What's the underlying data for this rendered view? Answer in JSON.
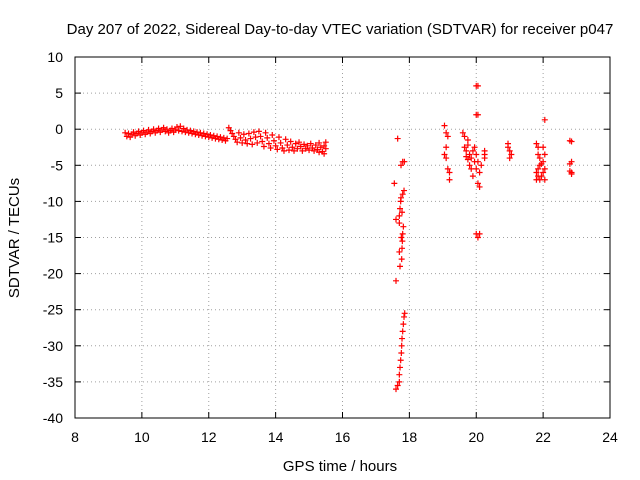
{
  "chart_data": {
    "type": "scatter",
    "title": "Day 207 of 2022, Sidereal Day-to-day VTEC variation (SDTVAR) for receiver p047",
    "xlabel": "GPS time / hours",
    "ylabel": "SDTVAR / TECUs",
    "xlim": [
      8,
      24
    ],
    "ylim": [
      -40,
      10
    ],
    "xticks": [
      8,
      10,
      12,
      14,
      16,
      18,
      20,
      22,
      24
    ],
    "yticks": [
      10,
      5,
      0,
      -5,
      -10,
      -15,
      -20,
      -25,
      -30,
      -35,
      -40
    ],
    "grid": true,
    "marker": "+",
    "color": "#ff0000",
    "series": [
      {
        "name": "SDTVAR",
        "points": [
          [
            9.5,
            -0.5
          ],
          [
            9.55,
            -1.0
          ],
          [
            9.6,
            -0.6
          ],
          [
            9.65,
            -1.1
          ],
          [
            9.7,
            -0.7
          ],
          [
            9.75,
            -0.4
          ],
          [
            9.8,
            -0.9
          ],
          [
            9.85,
            -0.6
          ],
          [
            9.9,
            -0.3
          ],
          [
            9.95,
            -0.8
          ],
          [
            10.0,
            -0.5
          ],
          [
            10.05,
            -0.2
          ],
          [
            10.1,
            -0.7
          ],
          [
            10.15,
            -0.4
          ],
          [
            10.2,
            -0.1
          ],
          [
            10.25,
            -0.6
          ],
          [
            10.3,
            -0.3
          ],
          [
            10.35,
            0.0
          ],
          [
            10.4,
            -0.5
          ],
          [
            10.45,
            -0.2
          ],
          [
            10.5,
            0.1
          ],
          [
            10.55,
            -0.4
          ],
          [
            10.6,
            -0.1
          ],
          [
            10.65,
            0.2
          ],
          [
            10.7,
            -0.3
          ],
          [
            10.75,
            0.0
          ],
          [
            10.8,
            -0.5
          ],
          [
            10.85,
            -0.2
          ],
          [
            10.9,
            0.1
          ],
          [
            10.95,
            -0.4
          ],
          [
            11.0,
            -0.1
          ],
          [
            11.05,
            0.3
          ],
          [
            11.1,
            -0.2
          ],
          [
            11.15,
            0.4
          ],
          [
            11.2,
            -0.3
          ],
          [
            11.25,
            0.1
          ],
          [
            11.3,
            -0.4
          ],
          [
            11.35,
            -0.1
          ],
          [
            11.4,
            -0.5
          ],
          [
            11.45,
            -0.2
          ],
          [
            11.5,
            -0.6
          ],
          [
            11.55,
            -0.3
          ],
          [
            11.6,
            -0.7
          ],
          [
            11.65,
            -0.4
          ],
          [
            11.7,
            -0.8
          ],
          [
            11.75,
            -0.5
          ],
          [
            11.8,
            -0.9
          ],
          [
            11.85,
            -0.6
          ],
          [
            11.9,
            -1.0
          ],
          [
            11.95,
            -0.7
          ],
          [
            12.0,
            -1.1
          ],
          [
            12.05,
            -0.8
          ],
          [
            12.1,
            -1.2
          ],
          [
            12.15,
            -0.9
          ],
          [
            12.2,
            -1.3
          ],
          [
            12.25,
            -1.0
          ],
          [
            12.3,
            -1.4
          ],
          [
            12.35,
            -1.1
          ],
          [
            12.4,
            -1.5
          ],
          [
            12.45,
            -1.2
          ],
          [
            12.5,
            -1.6
          ],
          [
            12.55,
            -1.3
          ],
          [
            12.6,
            0.2
          ],
          [
            12.65,
            -0.2
          ],
          [
            12.7,
            -0.6
          ],
          [
            12.75,
            -1.0
          ],
          [
            12.8,
            -1.4
          ],
          [
            12.85,
            -1.8
          ],
          [
            12.9,
            -0.5
          ],
          [
            12.95,
            -1.2
          ],
          [
            13.0,
            -1.9
          ],
          [
            13.05,
            -0.7
          ],
          [
            13.1,
            -1.5
          ],
          [
            13.15,
            -2.0
          ],
          [
            13.2,
            -0.6
          ],
          [
            13.25,
            -1.3
          ],
          [
            13.3,
            -2.1
          ],
          [
            13.35,
            -0.4
          ],
          [
            13.4,
            -1.1
          ],
          [
            13.45,
            -1.9
          ],
          [
            13.5,
            -0.3
          ],
          [
            13.55,
            -1.0
          ],
          [
            13.6,
            -1.7
          ],
          [
            13.65,
            -2.4
          ],
          [
            13.7,
            -0.5
          ],
          [
            13.75,
            -1.2
          ],
          [
            13.8,
            -2.0
          ],
          [
            13.85,
            -2.6
          ],
          [
            13.9,
            -0.8
          ],
          [
            13.95,
            -1.6
          ],
          [
            14.0,
            -2.3
          ],
          [
            14.05,
            -2.8
          ],
          [
            14.1,
            -1.1
          ],
          [
            14.15,
            -1.9
          ],
          [
            14.2,
            -2.6
          ],
          [
            14.25,
            -3.0
          ],
          [
            14.3,
            -1.4
          ],
          [
            14.35,
            -2.2
          ],
          [
            14.4,
            -2.9
          ],
          [
            14.45,
            -1.7
          ],
          [
            14.5,
            -2.5
          ],
          [
            14.55,
            -3.0
          ],
          [
            14.6,
            -2.0
          ],
          [
            14.65,
            -2.7
          ],
          [
            14.7,
            -1.8
          ],
          [
            14.75,
            -2.4
          ],
          [
            14.8,
            -3.0
          ],
          [
            14.85,
            -2.1
          ],
          [
            14.9,
            -2.7
          ],
          [
            14.95,
            -2.3
          ],
          [
            15.0,
            -2.9
          ],
          [
            15.05,
            -2.0
          ],
          [
            15.1,
            -2.6
          ],
          [
            15.15,
            -3.0
          ],
          [
            15.2,
            -2.2
          ],
          [
            15.25,
            -2.8
          ],
          [
            15.3,
            -1.9
          ],
          [
            15.35,
            -2.5
          ],
          [
            15.4,
            -3.1
          ],
          [
            15.45,
            -2.3
          ],
          [
            15.5,
            -2.7
          ],
          [
            15.5,
            -1.8
          ],
          [
            15.45,
            -3.4
          ],
          [
            15.3,
            -3.2
          ],
          [
            17.55,
            -7.5
          ],
          [
            17.6,
            -12.5
          ],
          [
            17.6,
            -21.0
          ],
          [
            17.6,
            -36.0
          ],
          [
            17.65,
            -1.3
          ],
          [
            17.65,
            -35.5
          ],
          [
            17.7,
            -35.0
          ],
          [
            17.7,
            -12.0
          ],
          [
            17.7,
            -34.0
          ],
          [
            17.72,
            -33.0
          ],
          [
            17.72,
            -11.0
          ],
          [
            17.74,
            -10.0
          ],
          [
            17.74,
            -32.0
          ],
          [
            17.75,
            -9.5
          ],
          [
            17.76,
            -31.0
          ],
          [
            17.77,
            -18.0
          ],
          [
            17.77,
            -30.0
          ],
          [
            17.78,
            -16.5
          ],
          [
            17.78,
            -29.0
          ],
          [
            17.79,
            -15.5
          ],
          [
            17.8,
            -28.0
          ],
          [
            17.8,
            -14.5
          ],
          [
            17.8,
            -9.0
          ],
          [
            17.82,
            -27.0
          ],
          [
            17.82,
            -13.5
          ],
          [
            17.84,
            -26.0
          ],
          [
            17.84,
            -8.5
          ],
          [
            17.86,
            -25.5
          ],
          [
            17.75,
            -5.0
          ],
          [
            17.8,
            -4.5
          ],
          [
            17.85,
            -4.5
          ],
          [
            17.7,
            -17.0
          ],
          [
            17.72,
            -19.0
          ],
          [
            17.7,
            -13.0
          ],
          [
            17.76,
            -15.0
          ],
          [
            17.78,
            -11.5
          ],
          [
            19.05,
            0.5
          ],
          [
            19.1,
            -0.5
          ],
          [
            19.15,
            -1.0
          ],
          [
            19.05,
            -3.5
          ],
          [
            19.1,
            -4.0
          ],
          [
            19.15,
            -5.5
          ],
          [
            19.2,
            -6.0
          ],
          [
            19.2,
            -7.0
          ],
          [
            19.1,
            -2.5
          ],
          [
            19.6,
            -0.5
          ],
          [
            19.65,
            -1.0
          ],
          [
            19.65,
            -2.5
          ],
          [
            19.7,
            -3.0
          ],
          [
            19.7,
            -3.8
          ],
          [
            19.75,
            -4.2
          ],
          [
            19.75,
            -2.2
          ],
          [
            19.8,
            -3.5
          ],
          [
            19.8,
            -5.0
          ],
          [
            19.85,
            -5.5
          ],
          [
            19.85,
            -4.0
          ],
          [
            19.9,
            -3.0
          ],
          [
            19.9,
            -6.5
          ],
          [
            19.95,
            -2.5
          ],
          [
            19.95,
            -4.5
          ],
          [
            20.0,
            -5.5
          ],
          [
            20.0,
            -3.5
          ],
          [
            20.05,
            -7.5
          ],
          [
            20.05,
            -4.5
          ],
          [
            20.1,
            -8.0
          ],
          [
            20.1,
            -6.0
          ],
          [
            20.15,
            -5.0
          ],
          [
            20.0,
            6.0
          ],
          [
            20.05,
            6.0
          ],
          [
            20.0,
            2.0
          ],
          [
            20.05,
            2.0
          ],
          [
            20.0,
            -14.5
          ],
          [
            20.05,
            -15.0
          ],
          [
            20.1,
            -14.5
          ],
          [
            19.75,
            -1.5
          ],
          [
            20.25,
            -3.0
          ],
          [
            20.25,
            -3.5
          ],
          [
            20.25,
            -4.0
          ],
          [
            20.95,
            -2.0
          ],
          [
            21.0,
            -3.0
          ],
          [
            21.05,
            -3.5
          ],
          [
            21.0,
            -4.0
          ],
          [
            20.95,
            -2.5
          ],
          [
            21.8,
            -2.0
          ],
          [
            21.85,
            -2.5
          ],
          [
            21.85,
            -3.5
          ],
          [
            21.9,
            -4.0
          ],
          [
            21.9,
            -5.0
          ],
          [
            21.85,
            -5.5
          ],
          [
            21.8,
            -6.0
          ],
          [
            21.85,
            -6.5
          ],
          [
            21.8,
            -7.0
          ],
          [
            21.9,
            -7.0
          ],
          [
            21.95,
            -6.5
          ],
          [
            22.0,
            -6.0
          ],
          [
            22.05,
            -5.5
          ],
          [
            22.0,
            -4.5
          ],
          [
            22.05,
            -3.5
          ],
          [
            22.05,
            -7.0
          ],
          [
            22.0,
            -2.5
          ],
          [
            22.05,
            1.3
          ],
          [
            21.95,
            -4.8
          ],
          [
            22.8,
            -1.6
          ],
          [
            22.85,
            -1.7
          ],
          [
            22.85,
            -4.5
          ],
          [
            22.8,
            -4.8
          ],
          [
            22.8,
            -5.8
          ],
          [
            22.85,
            -6.0
          ],
          [
            22.85,
            -6.2
          ]
        ]
      }
    ]
  }
}
